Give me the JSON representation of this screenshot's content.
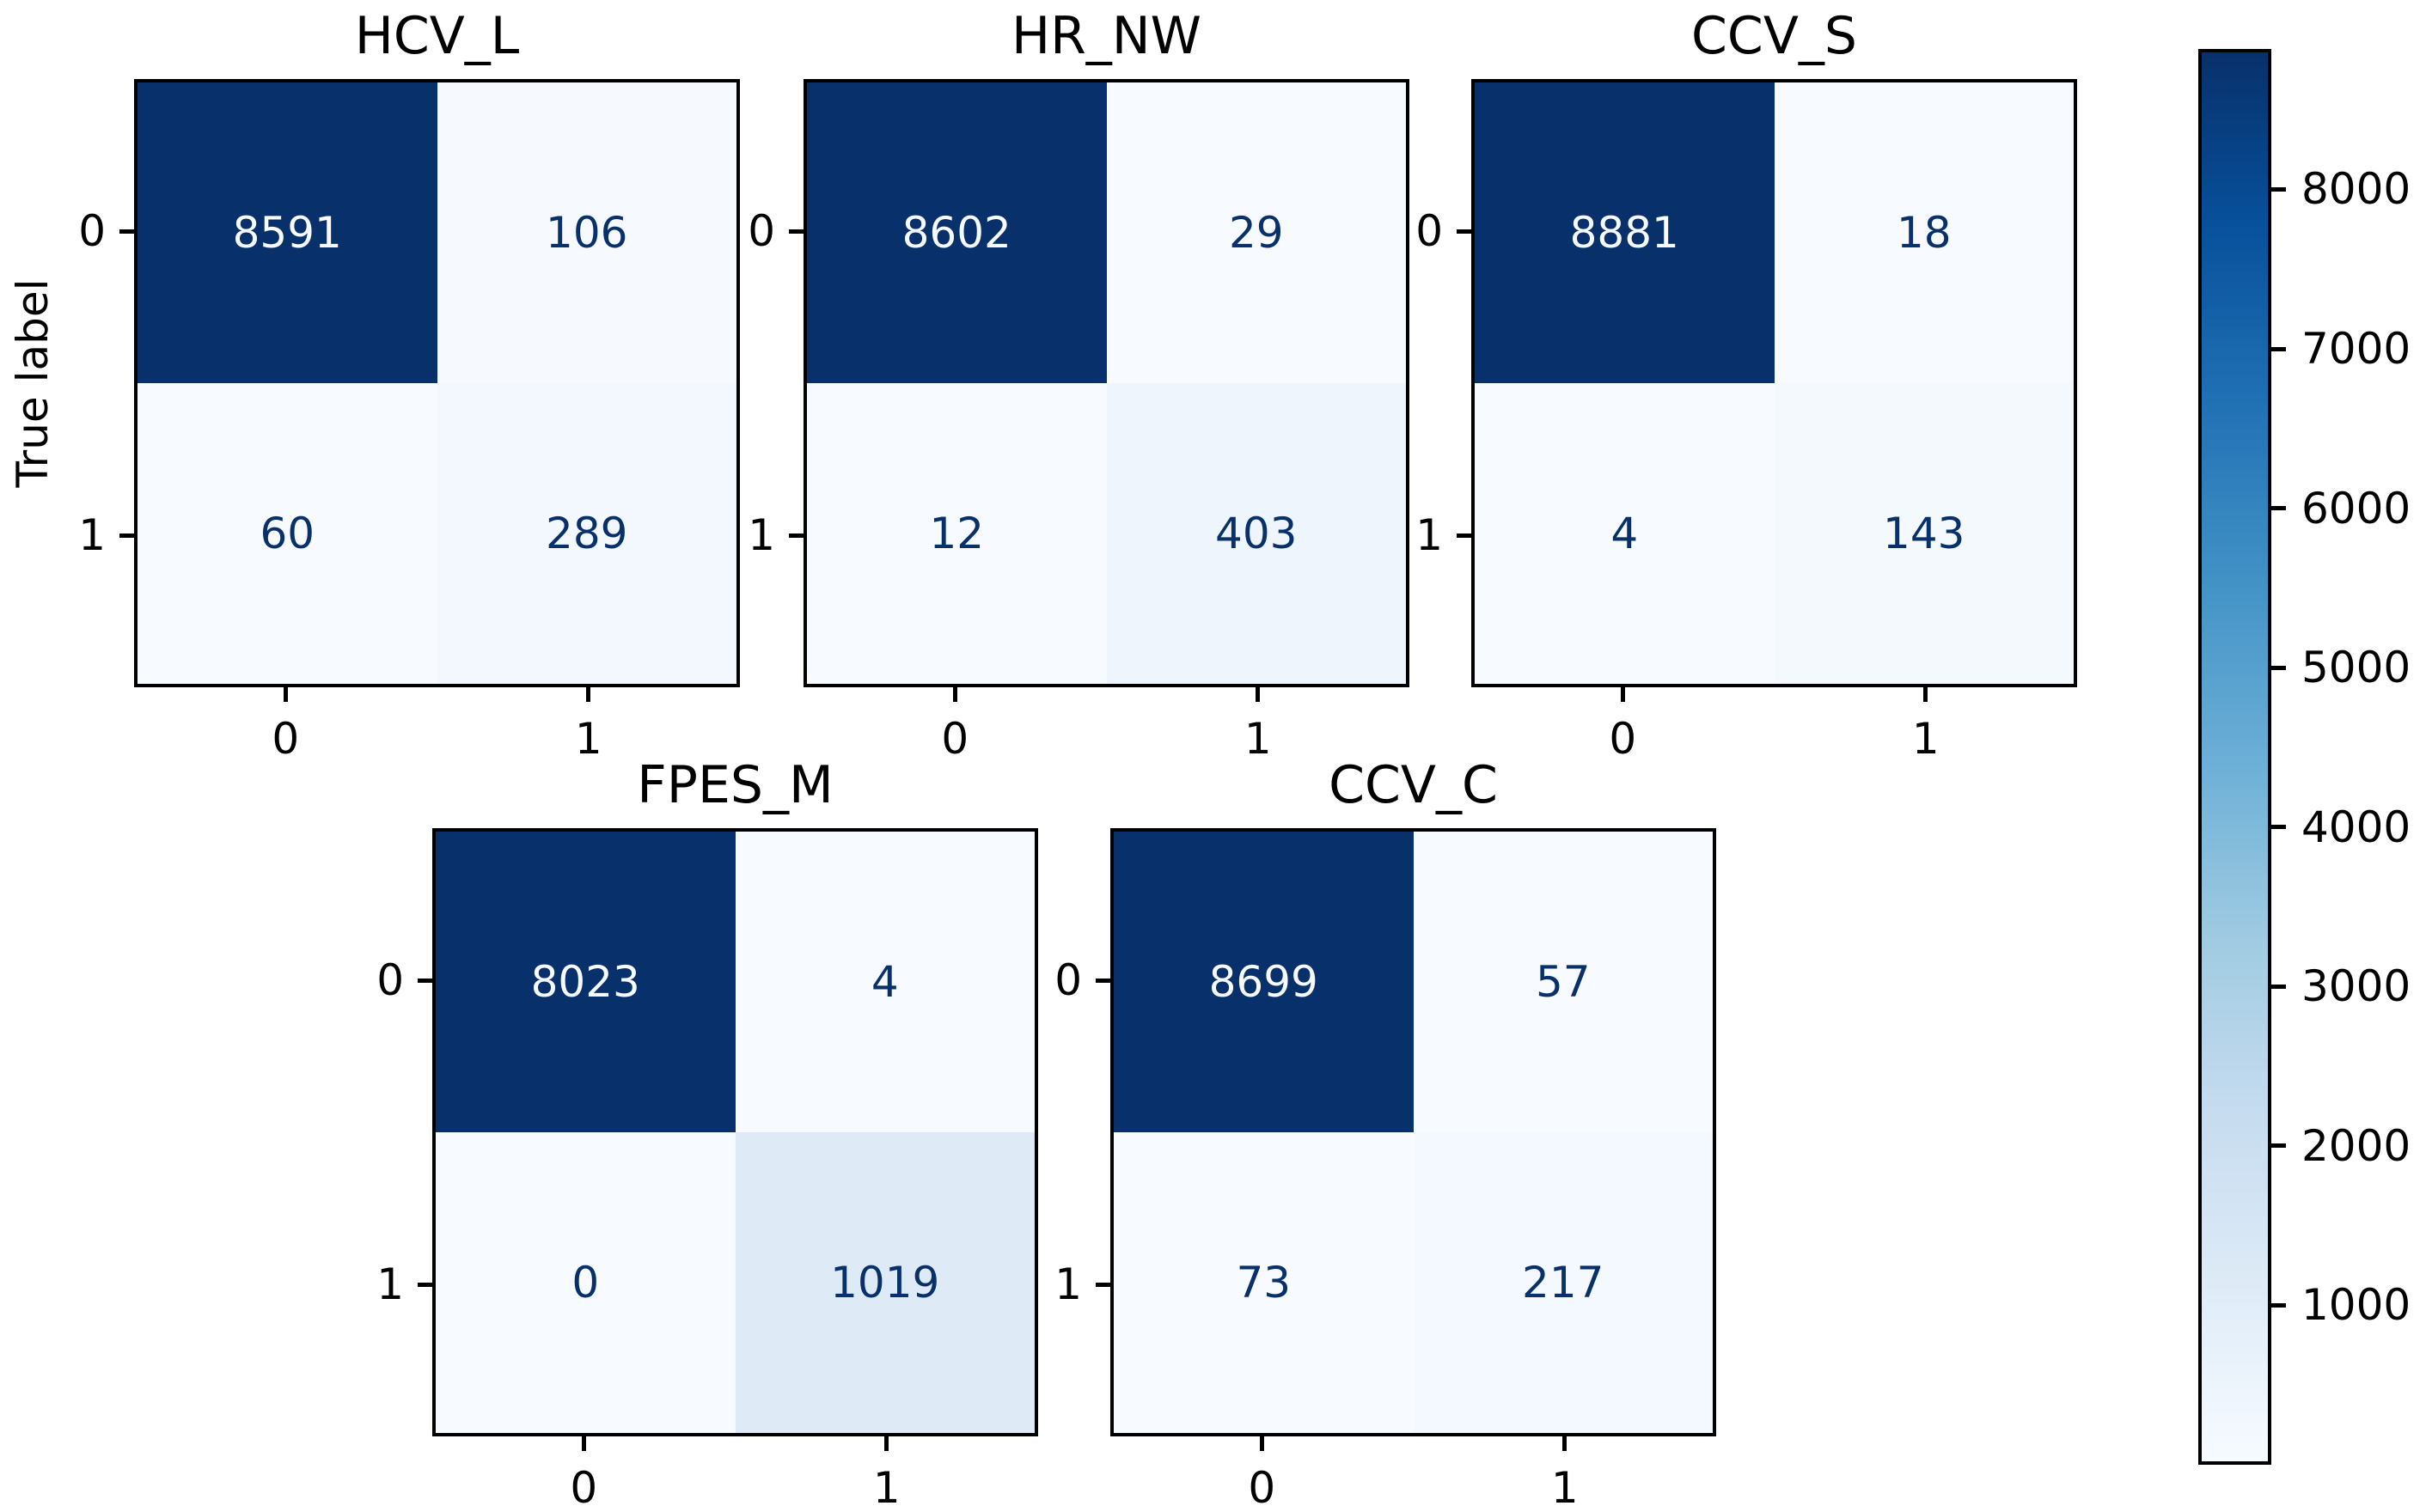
{
  "figure": {
    "background": "#ffffff",
    "spine_color": "#000000"
  },
  "chart_data": {
    "type": "heatmap",
    "subtype": "confusion-matrix-grid",
    "colormap": "Blues",
    "ylabel": "True label",
    "class_labels": [
      "0",
      "1"
    ],
    "matrices": [
      {
        "title": "HCV_L",
        "rows": [
          [
            8591,
            106
          ],
          [
            60,
            289
          ]
        ]
      },
      {
        "title": "HR_NW",
        "rows": [
          [
            8602,
            29
          ],
          [
            12,
            403
          ]
        ]
      },
      {
        "title": "CCV_S",
        "rows": [
          [
            8881,
            18
          ],
          [
            4,
            143
          ]
        ]
      },
      {
        "title": "FPES_M",
        "rows": [
          [
            8023,
            4
          ],
          [
            0,
            1019
          ]
        ]
      },
      {
        "title": "CCV_C",
        "rows": [
          [
            8699,
            57
          ],
          [
            73,
            217
          ]
        ]
      }
    ],
    "colorbar": {
      "vmin": 0,
      "vmax": 8881,
      "tick_values": [
        1000,
        2000,
        3000,
        4000,
        5000,
        6000,
        7000,
        8000
      ]
    },
    "cmap_stops": [
      "#f7fbff",
      "#deebf7",
      "#c6dbef",
      "#9ecae1",
      "#6baed6",
      "#4292c6",
      "#2171b5",
      "#08519c",
      "#08306b"
    ],
    "text_colors": {
      "on_light_cell": "#08306b",
      "on_dark_cell": "#f7fbff"
    }
  }
}
